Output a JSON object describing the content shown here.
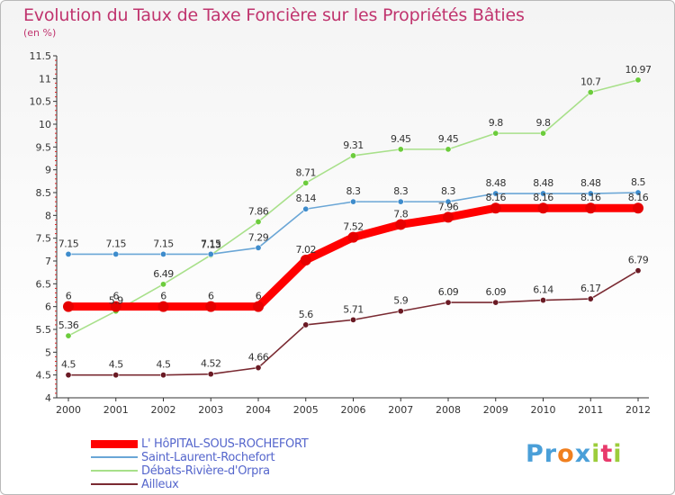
{
  "header": {
    "title": "Evolution du Taux de Taxe Foncière sur les Propriétés Bâties",
    "unit": "(en %)"
  },
  "brand": {
    "text": "Proxiti",
    "letters": [
      "P",
      "r",
      "o",
      "x",
      "i",
      "t",
      "i"
    ],
    "letter_colors": [
      "#4a9fd8",
      "#4a9fd8",
      "#f07f1e",
      "#4a9fd8",
      "#9ccd3b",
      "#e83a6b",
      "#9ccd3b"
    ]
  },
  "chart_data": {
    "type": "line",
    "title": "Evolution du Taux de Taxe Foncière sur les Propriétés Bâties",
    "ylabel": "(en %)",
    "xlabel": "",
    "x": [
      "2000",
      "2001",
      "2002",
      "2003",
      "2004",
      "2005",
      "2006",
      "2007",
      "2008",
      "2009",
      "2010",
      "2011",
      "2012"
    ],
    "ylim": [
      4,
      11.5
    ],
    "ytick_step": 0.5,
    "yticks": [
      "4",
      "4.5",
      "5",
      "5.5",
      "6",
      "6.5",
      "7",
      "7.5",
      "8",
      "8.5",
      "9",
      "9.5",
      "10",
      "10.5",
      "11",
      "11.5"
    ],
    "grid": false,
    "legend_position": "bottom-left",
    "series": [
      {
        "name": "L' HôPITAL-SOUS-ROCHEFORT",
        "color": "#ff0000",
        "marker_color": "#e60000",
        "emphasis": true,
        "values": [
          6,
          6,
          6,
          6,
          6,
          7.02,
          7.52,
          7.8,
          7.96,
          8.16,
          8.16,
          8.16,
          8.16
        ],
        "labels": [
          "6",
          "6",
          "6",
          "6",
          "6",
          "7.02",
          "7.52",
          "7.8",
          "7.96",
          "8.16",
          "8.16",
          "8.16",
          "8.16"
        ]
      },
      {
        "name": "Saint-Laurent-Rochefort",
        "color": "#6aa6d6",
        "marker_color": "#3e8ccc",
        "emphasis": false,
        "values": [
          7.15,
          7.15,
          7.15,
          7.15,
          7.29,
          8.14,
          8.3,
          8.3,
          8.3,
          8.48,
          8.48,
          8.48,
          8.5
        ],
        "labels": [
          "7.15",
          "7.15",
          "7.15",
          "7.15",
          "7.29",
          "8.14",
          "8.3",
          "8.3",
          "8.3",
          "8.48",
          "8.48",
          "8.48",
          "8.5"
        ]
      },
      {
        "name": "Débats-Rivière-d'Orpra",
        "color": "#a8e08a",
        "marker_color": "#6ccc3c",
        "emphasis": false,
        "values": [
          5.36,
          5.9,
          6.49,
          7.13,
          7.86,
          8.71,
          9.31,
          9.45,
          9.45,
          9.8,
          9.8,
          10.7,
          10.97
        ],
        "labels": [
          "5.36",
          "5.9",
          "6.49",
          "7.13",
          "7.86",
          "8.71",
          "9.31",
          "9.45",
          "9.45",
          "9.8",
          "9.8",
          "10.7",
          "10.97"
        ]
      },
      {
        "name": "Ailleux",
        "color": "#7a2a32",
        "marker_color": "#6a1a24",
        "emphasis": false,
        "values": [
          4.5,
          4.5,
          4.5,
          4.52,
          4.66,
          5.6,
          5.71,
          5.9,
          6.09,
          6.09,
          6.14,
          6.17,
          6.79
        ],
        "labels": [
          "4.5",
          "4.5",
          "4.5",
          "4.52",
          "4.66",
          "5.6",
          "5.71",
          "5.9",
          "6.09",
          "6.09",
          "6.14",
          "6.17",
          "6.79"
        ]
      }
    ]
  }
}
